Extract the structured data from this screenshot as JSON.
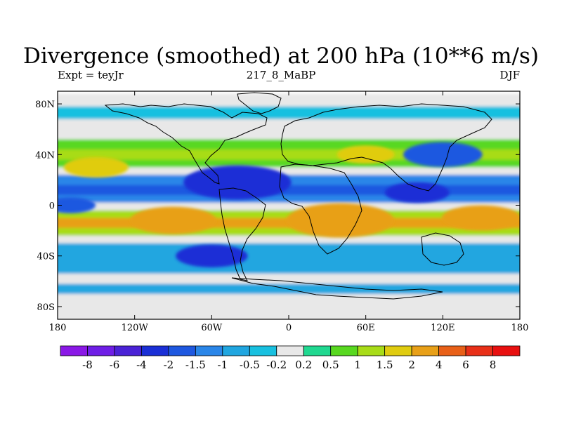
{
  "title": "Divergence (smoothed) at 200 hPa (10**6 m/s)",
  "subtitle_left": "Expt = teyJr",
  "subtitle_center": "217_8_MaBP",
  "subtitle_right": "DJF",
  "map_data": {
    "type": "filled-contour-map",
    "variable": "Divergence (smoothed) at 200 hPa",
    "units": "10**6 m/s",
    "lon_range": [
      -180,
      180
    ],
    "lat_range": [
      -90,
      90
    ],
    "x_ticks": [
      {
        "value": -180,
        "label": "180"
      },
      {
        "value": -120,
        "label": "120W"
      },
      {
        "value": -60,
        "label": "60W"
      },
      {
        "value": 0,
        "label": "0"
      },
      {
        "value": 60,
        "label": "60E"
      },
      {
        "value": 120,
        "label": "120E"
      },
      {
        "value": 180,
        "label": "180"
      }
    ],
    "y_ticks": [
      {
        "value": 80,
        "label": "80N"
      },
      {
        "value": 40,
        "label": "40N"
      },
      {
        "value": 0,
        "label": "0"
      },
      {
        "value": -40,
        "label": "40S"
      },
      {
        "value": -80,
        "label": "80S"
      }
    ],
    "levels": [
      "-8",
      "-6",
      "-4",
      "-2",
      "-1.5",
      "-1",
      "-0.5",
      "-0.2",
      "0.2",
      "0.5",
      "1",
      "1.5",
      "2",
      "4",
      "6",
      "8"
    ],
    "colors": [
      "#8a18e6",
      "#6f1ee6",
      "#4a22d6",
      "#1a2fd6",
      "#1e58e0",
      "#2a86e8",
      "#20a6e0",
      "#18c0e0",
      "#e8e8e8",
      "#20d890",
      "#58d820",
      "#a8dc18",
      "#e0cc10",
      "#e8a018",
      "#e86018",
      "#e83018",
      "#e81010"
    ],
    "zones": [
      {
        "lat": 88,
        "value": 0
      },
      {
        "lat": 78,
        "value": -0.5
      },
      {
        "lat": 68,
        "value": 0
      },
      {
        "lat": 60,
        "value": 0
      },
      {
        "lat": 52,
        "value": 0.6
      },
      {
        "lat": 44,
        "value": 1.2
      },
      {
        "lat": 36,
        "value": 0.8
      },
      {
        "lat": 30,
        "value": 0
      },
      {
        "lat": 24,
        "value": -1.2
      },
      {
        "lat": 16,
        "value": -1.8
      },
      {
        "lat": 8,
        "value": -1.2
      },
      {
        "lat": 2,
        "value": 0
      },
      {
        "lat": -4,
        "value": 1.2
      },
      {
        "lat": -10,
        "value": 2.5
      },
      {
        "lat": -18,
        "value": 1.2
      },
      {
        "lat": -24,
        "value": 0
      },
      {
        "lat": -30,
        "value": -0.7
      },
      {
        "lat": -38,
        "value": -1.0
      },
      {
        "lat": -46,
        "value": -0.6
      },
      {
        "lat": -54,
        "value": 0
      },
      {
        "lat": -62,
        "value": -0.6
      },
      {
        "lat": -70,
        "value": 0
      },
      {
        "lat": -90,
        "value": 0
      }
    ],
    "blobs": [
      {
        "lon": -40,
        "lat": 18,
        "r": 30,
        "value": -3
      },
      {
        "lon": 100,
        "lat": 10,
        "r": 18,
        "value": -2.5
      },
      {
        "lon": -90,
        "lat": -12,
        "r": 24,
        "value": 2.5
      },
      {
        "lon": 40,
        "lat": -12,
        "r": 30,
        "value": 3.5
      },
      {
        "lon": -150,
        "lat": 30,
        "r": 18,
        "value": 1.8
      },
      {
        "lon": 60,
        "lat": 40,
        "r": 16,
        "value": 1.6
      },
      {
        "lon": 120,
        "lat": 40,
        "r": 22,
        "value": -1.8
      },
      {
        "lon": -60,
        "lat": -40,
        "r": 20,
        "value": -2.2
      },
      {
        "lon": 150,
        "lat": -10,
        "r": 22,
        "value": 2.2
      },
      {
        "lon": -170,
        "lat": 0,
        "r": 14,
        "value": -1.6
      }
    ]
  },
  "colorbar": {
    "labels": [
      "-8",
      "-6",
      "-4",
      "-2",
      "-1.5",
      "-1",
      "-0.5",
      "-0.2",
      "0.2",
      "0.5",
      "1",
      "1.5",
      "2",
      "4",
      "6",
      "8"
    ]
  }
}
